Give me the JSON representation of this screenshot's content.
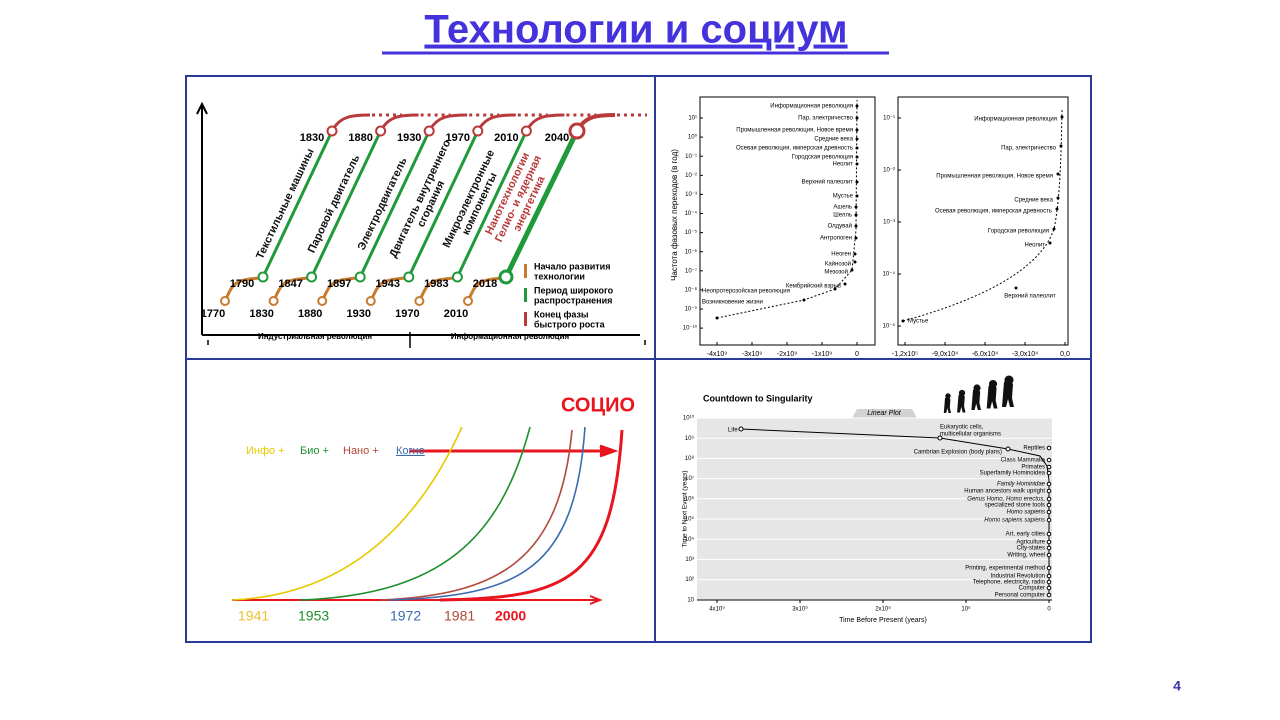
{
  "title": "Технологии и социум",
  "page_number": "4",
  "waves": {
    "start_years": [
      "1770",
      "1830",
      "1880",
      "1930",
      "1970",
      "2010"
    ],
    "spread_years": [
      "1790",
      "1847",
      "1897",
      "1943",
      "1983",
      "2018"
    ],
    "end_years": [
      "1830",
      "1880",
      "1930",
      "1970",
      "2010",
      "2040"
    ],
    "technologies": [
      "Текстильные машины",
      "Паровой двигатель",
      "Электродвигатель",
      [
        "Двигатель внутреннего",
        "сгорания"
      ],
      [
        "Микроэлектронные",
        "компоненты"
      ],
      [
        "Нанотехнологии",
        "Гелио- и ядерная",
        "энергетика"
      ]
    ],
    "legend": [
      [
        "Начало развития",
        "технологии"
      ],
      [
        "Период широкого",
        "распространения"
      ],
      [
        "Конец фазы",
        "быстрого роста"
      ]
    ],
    "eras": [
      "Индустриальная революция",
      "Информационная революция"
    ]
  },
  "phase": {
    "y_axis_label": "Частота фазовых переходов (в год)",
    "left": {
      "yticks": [
        "10¹",
        "10⁰",
        "10⁻¹",
        "10⁻²",
        "10⁻³",
        "10⁻⁴",
        "10⁻⁵",
        "10⁻⁶",
        "10⁻⁷",
        "10⁻⁸",
        "10⁻⁹",
        "10⁻¹⁰"
      ],
      "xticks": [
        "-4x10⁹",
        "-3x10⁹",
        "-2x10⁹",
        "-1x10⁹",
        "0"
      ],
      "events": [
        "Информационная революция",
        "Пар, электричество",
        "Промышленная революция, Новое время",
        "Средние века",
        "Осевая революция, имперская древность",
        "Городская революция",
        "Неолит",
        "Верхний палеолит",
        "Мустье",
        "Ашель",
        "Шелль",
        "Олдувай",
        "Антропоген",
        "Неоген",
        "Кайнозой",
        "Мезозой",
        "Кембрийский взрыв",
        "Неопротерозойская революция",
        "Возникновение жизни"
      ]
    },
    "right": {
      "yticks": [
        "10⁻¹",
        "10⁻²",
        "10⁻³",
        "10⁻⁴",
        "10⁻⁵"
      ],
      "xticks": [
        "-1,2x10⁵",
        "-9,0x10⁴",
        "-6,0x10⁴",
        "-3,0x10⁴",
        "0,0"
      ],
      "events": [
        "Информационная революция",
        "Пар, электричество",
        "Промышленная революция, Новое время",
        "Средние века",
        "Осевая революция, имперская древность",
        "Городская революция",
        "Неолит",
        "Верхний палеолит",
        "Мустье"
      ]
    }
  },
  "socio": {
    "label": "СОЦИО",
    "streams": [
      "Инфо +",
      "Био +",
      "Нано +",
      "Когно"
    ],
    "years": [
      "1941",
      "1953",
      "1972",
      "1981",
      "2000"
    ]
  },
  "singularity": {
    "title": "Countdown to Singularity",
    "plot_label": "Linear Plot",
    "y_axis_label": "Time to Next Event (years)",
    "x_axis_label": "Time Before Present (years)",
    "xticks": [
      "4x10⁹",
      "3x10⁹",
      "2x10⁹",
      "10⁹",
      "0"
    ],
    "yticks": [
      "10¹⁰",
      "10⁹",
      "10⁸",
      "10⁷",
      "10⁶",
      "10⁵",
      "10⁴",
      "10³",
      "10²",
      "10"
    ],
    "events": [
      "Life",
      [
        "Eukaryotic cells,",
        "multicellular organisms"
      ],
      "Cambrian Explosion (body plans)",
      "Reptiles",
      "Class Mammalia",
      "Primates",
      "Superfamily Hominoidea",
      "Family Hominidae",
      "Human ancestors walk upright",
      "Genus Homo, Homo erectus,",
      "specialized stone tools",
      "Homo sapiens",
      "Homo sapiens sapiens",
      "Art, early cities",
      "Agriculture",
      "City-states",
      "Writing, wheel",
      "Printing, experimental method",
      "Industrial Revolution",
      "Telephone, electricity, radio",
      "Computer",
      "Personal computer"
    ]
  }
}
